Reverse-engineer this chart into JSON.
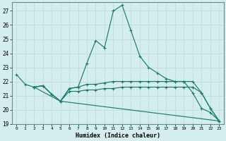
{
  "xlabel": "Humidex (Indice chaleur)",
  "bg_color": "#d4eeed",
  "grid_color": "#c0dede",
  "line_color": "#1e7b6e",
  "xlim": [
    -0.5,
    23.5
  ],
  "ylim": [
    19,
    27.6
  ],
  "yticks": [
    19,
    20,
    21,
    22,
    23,
    24,
    25,
    26,
    27
  ],
  "xticks": [
    0,
    1,
    2,
    3,
    4,
    5,
    6,
    7,
    8,
    9,
    10,
    11,
    12,
    13,
    14,
    15,
    16,
    17,
    18,
    19,
    20,
    21,
    22,
    23
  ],
  "lines": [
    {
      "x": [
        0,
        1,
        2,
        3,
        4,
        5,
        6,
        7,
        8,
        9,
        10,
        11,
        12,
        13,
        14,
        15,
        16,
        17,
        18,
        19,
        20,
        21,
        22,
        23
      ],
      "y": [
        22.5,
        21.8,
        21.6,
        21.7,
        21.1,
        20.6,
        21.5,
        21.6,
        23.3,
        24.9,
        24.4,
        27.0,
        27.4,
        25.6,
        23.8,
        23.0,
        22.6,
        22.2,
        22.0,
        22.0,
        21.2,
        20.1,
        19.8,
        19.2
      ]
    },
    {
      "x": [
        2,
        3,
        4,
        5,
        6,
        7,
        8,
        9,
        10,
        11,
        12,
        13,
        14,
        15,
        16,
        17,
        18,
        19,
        20,
        21,
        22,
        23
      ],
      "y": [
        21.6,
        21.7,
        21.1,
        20.6,
        21.5,
        21.6,
        21.8,
        21.8,
        21.9,
        22.0,
        22.0,
        22.0,
        22.0,
        22.0,
        22.0,
        22.0,
        22.0,
        22.0,
        22.0,
        21.2,
        20.1,
        19.2
      ]
    },
    {
      "x": [
        2,
        3,
        4,
        5,
        6,
        7,
        8,
        9,
        10,
        11,
        12,
        13,
        14,
        15,
        16,
        17,
        18,
        19,
        20,
        21,
        22,
        23
      ],
      "y": [
        21.6,
        21.7,
        21.1,
        20.6,
        21.3,
        21.3,
        21.4,
        21.4,
        21.5,
        21.5,
        21.6,
        21.6,
        21.6,
        21.6,
        21.6,
        21.6,
        21.6,
        21.6,
        21.6,
        21.2,
        20.1,
        19.2
      ]
    },
    {
      "x": [
        2,
        5,
        23
      ],
      "y": [
        21.6,
        20.6,
        19.2
      ]
    }
  ]
}
